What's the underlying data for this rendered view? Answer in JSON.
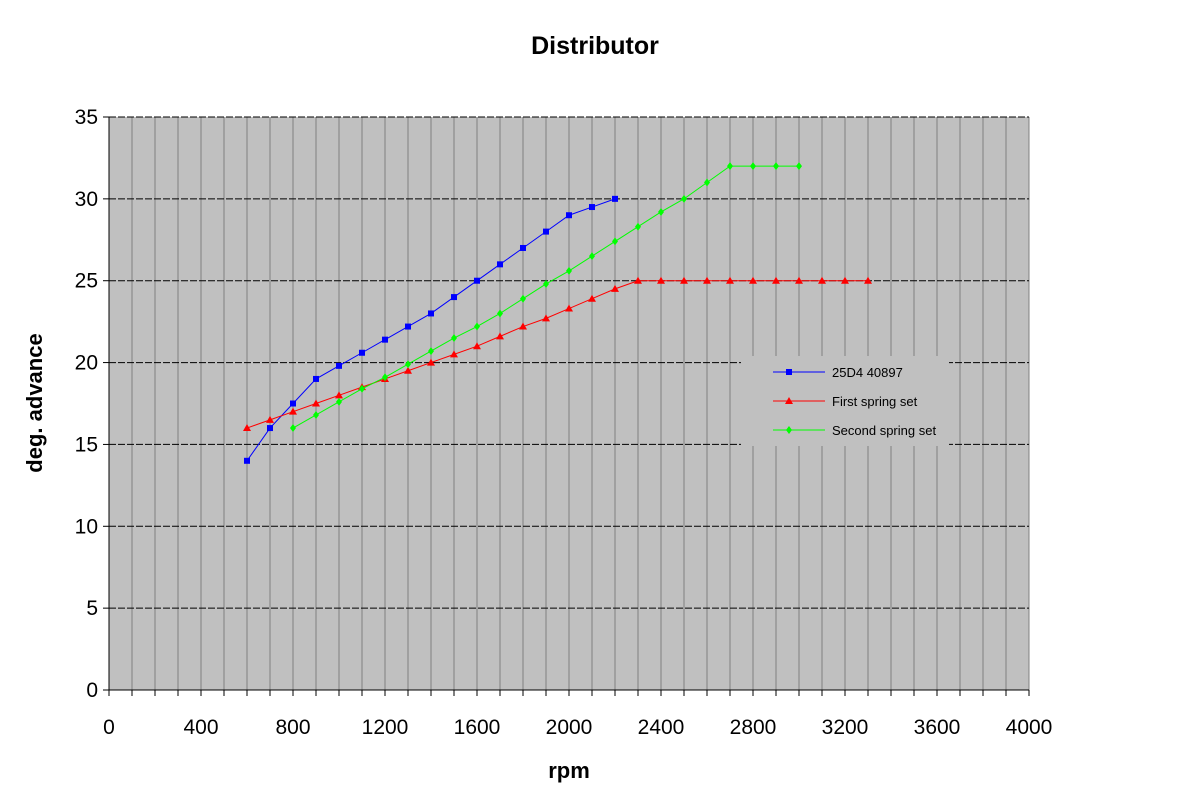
{
  "chart_data": {
    "type": "line",
    "title": "Distributor",
    "xlabel": "rpm",
    "ylabel": "deg. advance",
    "xlim": [
      0,
      4000
    ],
    "ylim": [
      0,
      35
    ],
    "x_major_ticks": [
      0,
      400,
      800,
      1200,
      1600,
      2000,
      2400,
      2800,
      3200,
      3600,
      4000
    ],
    "x_minor_step": 100,
    "y_ticks": [
      0,
      5,
      10,
      15,
      20,
      25,
      30,
      35
    ],
    "grid": true,
    "plot_background": "#c0c0c0",
    "legend_position": "right",
    "series": [
      {
        "name": "25D4 40897",
        "color": "#0000ff",
        "marker": "square",
        "x": [
          600,
          700,
          800,
          900,
          1000,
          1100,
          1200,
          1300,
          1400,
          1500,
          1600,
          1700,
          1800,
          1900,
          2000,
          2100,
          2200
        ],
        "y": [
          14,
          16,
          17.5,
          19,
          19.8,
          20.6,
          21.4,
          22.2,
          23,
          24,
          25,
          26,
          27,
          28,
          29,
          29.5,
          30
        ]
      },
      {
        "name": "First spring set",
        "color": "#ff0000",
        "marker": "triangle",
        "x": [
          600,
          700,
          800,
          900,
          1000,
          1100,
          1200,
          1300,
          1400,
          1500,
          1600,
          1700,
          1800,
          1900,
          2000,
          2100,
          2200,
          2300,
          2400,
          2500,
          2600,
          2700,
          2800,
          2900,
          3000,
          3100,
          3200,
          3300
        ],
        "y": [
          16,
          16.5,
          17,
          17.5,
          18,
          18.5,
          19,
          19.5,
          20,
          20.5,
          21,
          21.6,
          22.2,
          22.7,
          23.3,
          23.9,
          24.5,
          25,
          25,
          25,
          25,
          25,
          25,
          25,
          25,
          25,
          25,
          25
        ]
      },
      {
        "name": "Second spring set",
        "color": "#00ff00",
        "marker": "diamond",
        "x": [
          800,
          900,
          1000,
          1100,
          1200,
          1300,
          1400,
          1500,
          1600,
          1700,
          1800,
          1900,
          2000,
          2100,
          2200,
          2300,
          2400,
          2500,
          2600,
          2700,
          2800,
          2900,
          3000
        ],
        "y": [
          16,
          16.8,
          17.6,
          18.4,
          19.1,
          19.9,
          20.7,
          21.5,
          22.2,
          23,
          23.9,
          24.8,
          25.6,
          26.5,
          27.4,
          28.3,
          29.2,
          30,
          31,
          32,
          32,
          32,
          32
        ]
      }
    ]
  }
}
